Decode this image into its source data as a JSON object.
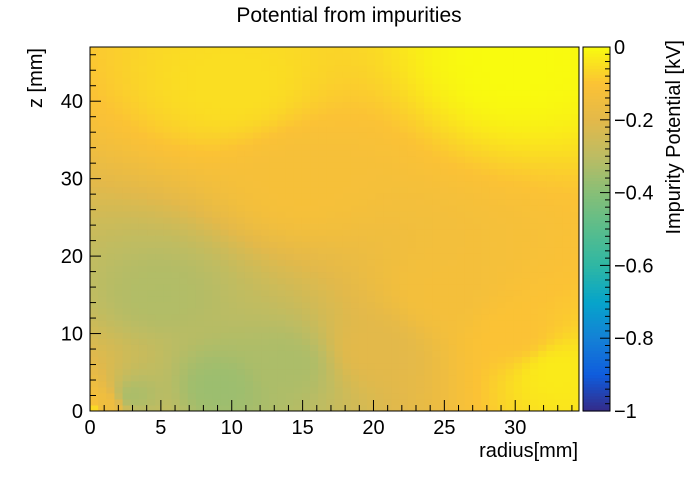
{
  "chart_data": {
    "type": "heatmap",
    "title": "Potential from impurities",
    "xlabel": "radius[mm]",
    "ylabel": "z [mm]",
    "colorbar_label": "Impurity Potential [kV]",
    "xlim": [
      0,
      34.5
    ],
    "ylim": [
      0,
      47
    ],
    "zlim": [
      -1,
      0
    ],
    "x_ticks": [
      0,
      5,
      10,
      15,
      20,
      25,
      30
    ],
    "y_ticks": [
      0,
      10,
      20,
      30,
      40
    ],
    "colorbar_ticks": [
      0,
      -0.2,
      -0.4,
      -0.6,
      -0.8,
      -1
    ],
    "colorbar_tick_labels": [
      "0",
      "−0.2",
      "−0.4",
      "−0.6",
      "−0.8",
      "−1"
    ],
    "colormap": [
      {
        "v": -1.0,
        "color": "#352a87"
      },
      {
        "v": -0.9,
        "color": "#0f5cdd"
      },
      {
        "v": -0.8,
        "color": "#1481d6"
      },
      {
        "v": -0.7,
        "color": "#06a4ca"
      },
      {
        "v": -0.6,
        "color": "#2eb7a4"
      },
      {
        "v": -0.5,
        "color": "#59bd8c"
      },
      {
        "v": -0.4,
        "color": "#87bf77"
      },
      {
        "v": -0.3,
        "color": "#bcbc63"
      },
      {
        "v": -0.2,
        "color": "#e3b94a"
      },
      {
        "v": -0.1,
        "color": "#fbc235"
      },
      {
        "v": 0.0,
        "color": "#f9fb0e"
      }
    ],
    "samples": [
      {
        "r": 0,
        "z": 0,
        "v": -0.05
      },
      {
        "r": 1,
        "z": 1,
        "v": -0.15
      },
      {
        "r": 3,
        "z": 2,
        "v": -0.33
      },
      {
        "r": 9,
        "z": 3,
        "v": -0.36
      },
      {
        "r": 14,
        "z": 6,
        "v": -0.33
      },
      {
        "r": 5,
        "z": 15,
        "v": -0.32
      },
      {
        "r": 20,
        "z": 8,
        "v": -0.2
      },
      {
        "r": 25,
        "z": 15,
        "v": -0.13
      },
      {
        "r": 15,
        "z": 30,
        "v": -0.12
      },
      {
        "r": 30,
        "z": 10,
        "v": -0.1
      },
      {
        "r": 10,
        "z": 42,
        "v": -0.05
      },
      {
        "r": 33,
        "z": 5,
        "v": -0.03
      },
      {
        "r": 30,
        "z": 45,
        "v": 0.0
      }
    ],
    "grid": false
  }
}
